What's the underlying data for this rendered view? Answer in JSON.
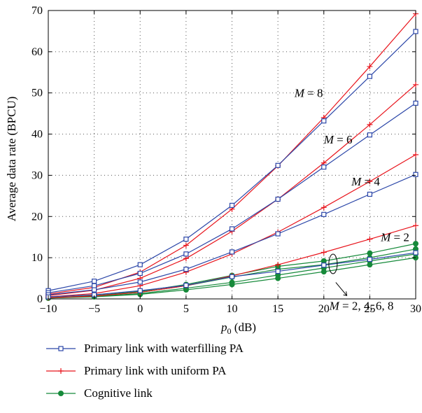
{
  "chart_data": {
    "type": "line",
    "xlabel_var": "p",
    "xlabel_sub": "0",
    "xlabel_unit": " (dB)",
    "ylabel": "Average data rate (BPCU)",
    "x": [
      -10,
      -5,
      0,
      5,
      10,
      15,
      20,
      25,
      30
    ],
    "xlim": [
      -10,
      30
    ],
    "ylim": [
      0,
      70
    ],
    "xticks": [
      "−10",
      "−5",
      "0",
      "5",
      "10",
      "15",
      "20",
      "25",
      "30"
    ],
    "yticks": [
      "0",
      "10",
      "20",
      "30",
      "40",
      "50",
      "60",
      "70"
    ],
    "grid": true,
    "series": [
      {
        "name": "Primary link with waterfilling PA",
        "group": "waterfilling",
        "M": 8,
        "values": [
          2.0,
          4.3,
          8.3,
          14.5,
          22.7,
          32.4,
          43.2,
          54.0,
          64.9
        ]
      },
      {
        "name": "Primary link with waterfilling PA",
        "group": "waterfilling",
        "M": 6,
        "values": [
          1.5,
          3.2,
          6.2,
          10.9,
          17.0,
          24.2,
          32.0,
          39.8,
          47.5
        ]
      },
      {
        "name": "Primary link with waterfilling PA",
        "group": "waterfilling",
        "M": 4,
        "values": [
          1.0,
          2.2,
          4.1,
          7.2,
          11.4,
          15.8,
          20.5,
          25.4,
          30.2
        ]
      },
      {
        "name": "Primary link with waterfilling PA",
        "group": "waterfilling",
        "M": 2,
        "values": [
          0.5,
          1.0,
          2.0,
          3.3,
          5.4,
          6.7,
          8.2,
          9.6,
          11.2
        ]
      },
      {
        "name": "Primary link with uniform PA",
        "group": "uniform",
        "M": 8,
        "values": [
          1.2,
          2.8,
          6.5,
          13.0,
          21.8,
          32.3,
          44.0,
          56.4,
          69.2
        ]
      },
      {
        "name": "Primary link with uniform PA",
        "group": "uniform",
        "M": 6,
        "values": [
          0.8,
          2.1,
          5.0,
          9.8,
          16.4,
          24.2,
          33.0,
          42.3,
          52.0
        ]
      },
      {
        "name": "Primary link with uniform PA",
        "group": "uniform",
        "M": 4,
        "values": [
          0.5,
          1.3,
          3.2,
          6.5,
          10.9,
          16.2,
          22.2,
          28.5,
          35.0
        ]
      },
      {
        "name": "Primary link with uniform PA",
        "group": "uniform",
        "M": 2,
        "values": [
          0.3,
          0.7,
          1.6,
          3.2,
          5.6,
          8.3,
          11.3,
          14.5,
          17.8
        ]
      },
      {
        "name": "Cognitive link",
        "group": "cognitive",
        "M": 8,
        "values": [
          0.3,
          0.8,
          1.8,
          3.5,
          5.7,
          7.9,
          9.2,
          11.1,
          13.4
        ]
      },
      {
        "name": "Cognitive link",
        "group": "cognitive",
        "M": 6,
        "values": [
          0.3,
          0.7,
          1.6,
          3.2,
          5.3,
          7.2,
          8.3,
          10.0,
          12.1
        ]
      },
      {
        "name": "Cognitive link",
        "group": "cognitive",
        "M": 4,
        "values": [
          0.2,
          0.6,
          1.3,
          2.6,
          4.0,
          5.8,
          7.5,
          9.2,
          10.9
        ]
      },
      {
        "name": "Cognitive link",
        "group": "cognitive",
        "M": 2,
        "values": [
          0.2,
          0.5,
          1.1,
          2.2,
          3.5,
          5.0,
          6.6,
          8.3,
          10.0
        ]
      }
    ],
    "annotations": [
      {
        "var": "M",
        "text": " = 8",
        "x": 16.8,
        "y": 49.0
      },
      {
        "var": "M",
        "text": " = 6",
        "x": 20.0,
        "y": 37.7
      },
      {
        "var": "M",
        "text": " = 4",
        "x": 23.0,
        "y": 27.5
      },
      {
        "var": "M",
        "text": " = 2",
        "x": 26.2,
        "y": 14.0
      },
      {
        "var": "M",
        "text": " = 2, 4, 6, 8",
        "x": 20.6,
        "y": -2.6
      }
    ],
    "legend_position": "bottom",
    "legend": [
      {
        "label": "Primary link with waterfilling PA",
        "group": "waterfilling"
      },
      {
        "label": "Primary link with uniform PA",
        "group": "uniform"
      },
      {
        "label": "Cognitive link",
        "group": "cognitive"
      }
    ],
    "colors": {
      "waterfilling": "#2b46a8",
      "uniform": "#e8141c",
      "cognitive": "#168a3a"
    }
  }
}
